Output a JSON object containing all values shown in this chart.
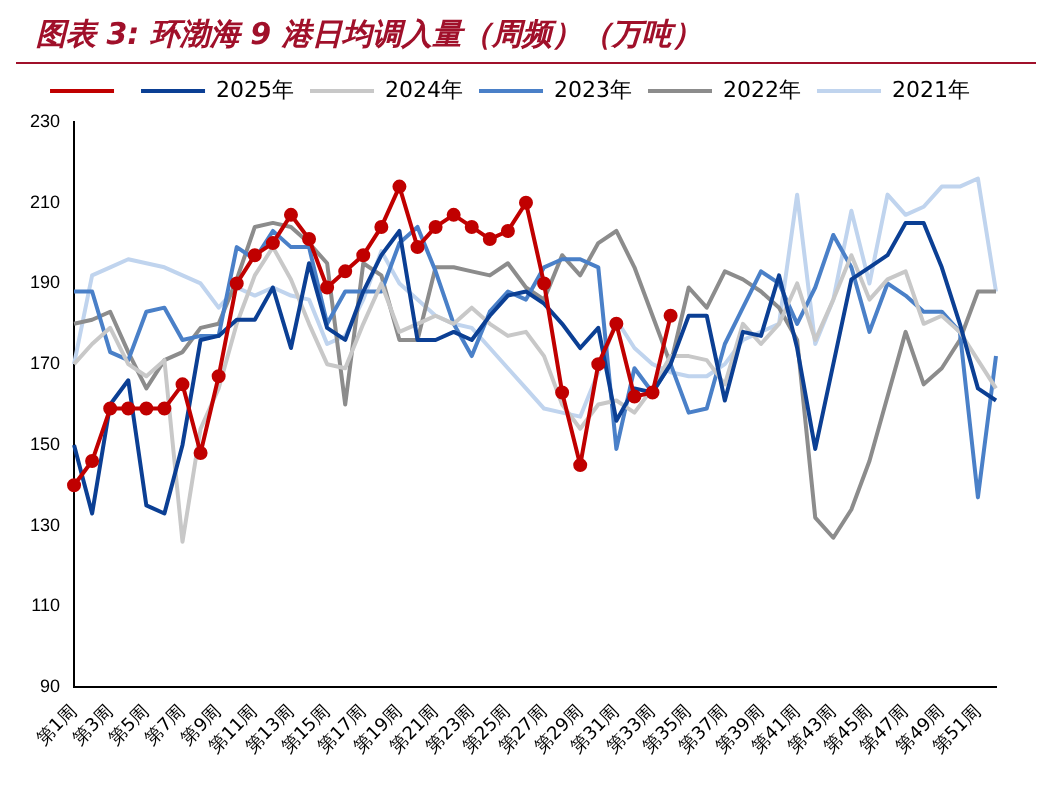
{
  "chart_data": {
    "type": "line",
    "title": "图表 3:  环渤海 9 港日均调入量（周频）（万吨）",
    "categories": [
      "第1周",
      null,
      "第3周",
      null,
      "第5周",
      null,
      "第7周",
      null,
      "第9周",
      null,
      "第11周",
      null,
      "第13周",
      null,
      "第15周",
      null,
      "第17周",
      null,
      "第19周",
      null,
      "第21周",
      null,
      "第23周",
      null,
      "第25周",
      null,
      "第27周",
      null,
      "第29周",
      null,
      "第31周",
      null,
      "第33周",
      null,
      "第35周",
      null,
      "第37周",
      null,
      "第39周",
      null,
      "第41周",
      null,
      "第43周",
      null,
      "第45周",
      null,
      "第47周",
      null,
      "第49周",
      null,
      "第51周",
      null
    ],
    "ylim": [
      90,
      230
    ],
    "yticks": [
      90,
      110,
      130,
      150,
      170,
      190,
      210,
      230
    ],
    "grid": false,
    "legend": "top",
    "marker": "none",
    "series": [
      {
        "color": "#c00000",
        "marker": "circle",
        "values": [
          140,
          146,
          159,
          159,
          159,
          159,
          165,
          148,
          167,
          190,
          197,
          200,
          207,
          201,
          189,
          193,
          197,
          204,
          214,
          199,
          204,
          207,
          204,
          201,
          203,
          210,
          190,
          163,
          145,
          170,
          180,
          162,
          163,
          182,
          null,
          null,
          null,
          null,
          null,
          null,
          null,
          null,
          null,
          null,
          null,
          null,
          null,
          null,
          null,
          null,
          null,
          null
        ]
      },
      {
        "name": "2025年",
        "color": "#0b3f94",
        "values": [
          150,
          133,
          160,
          166,
          135,
          133,
          150,
          176,
          177,
          181,
          181,
          189,
          174,
          195,
          179,
          176,
          188,
          197,
          203,
          176,
          176,
          178,
          176,
          182,
          187,
          188,
          185,
          180,
          174,
          179,
          156,
          164,
          163,
          170,
          182,
          182,
          161,
          178,
          177,
          192,
          174,
          149,
          170,
          191,
          194,
          197,
          205,
          205,
          194,
          180,
          164,
          161
        ]
      },
      {
        "name": "2024年",
        "color": "#c8c8c8",
        "values": [
          170,
          175,
          179,
          170,
          167,
          171,
          126,
          154,
          164,
          180,
          192,
          199,
          191,
          180,
          170,
          169,
          180,
          190,
          178,
          180,
          182,
          180,
          184,
          180,
          177,
          178,
          172,
          160,
          154,
          160,
          161,
          158,
          164,
          172,
          172,
          171,
          165,
          180,
          175,
          180,
          190,
          176,
          186,
          197,
          186,
          191,
          193,
          180,
          182,
          178,
          171,
          164
        ]
      },
      {
        "name": "2023年",
        "color": "#4a80c8",
        "values": [
          188,
          188,
          173,
          171,
          183,
          184,
          176,
          177,
          177,
          199,
          196,
          203,
          199,
          199,
          180,
          188,
          188,
          188,
          200,
          204,
          193,
          180,
          172,
          183,
          188,
          186,
          194,
          196,
          196,
          194,
          149,
          169,
          163,
          170,
          158,
          159,
          175,
          184,
          193,
          190,
          180,
          189,
          202,
          194,
          178,
          190,
          187,
          183,
          183,
          178,
          137,
          172
        ]
      },
      {
        "name": "2022年",
        "color": "#8c8c8c",
        "values": [
          180,
          181,
          183,
          173,
          164,
          171,
          173,
          179,
          180,
          191,
          204,
          205,
          204,
          200,
          195,
          160,
          195,
          192,
          176,
          176,
          194,
          194,
          193,
          192,
          195,
          189,
          186,
          197,
          192,
          200,
          203,
          194,
          182,
          170,
          189,
          184,
          193,
          191,
          188,
          184,
          176,
          132,
          127,
          134,
          146,
          162,
          178,
          165,
          169,
          176,
          188,
          188
        ]
      },
      {
        "name": "2021年",
        "color": "#c0d4ee",
        "values": [
          170,
          192,
          194,
          196,
          195,
          194,
          192,
          190,
          184,
          189,
          187,
          189,
          187,
          186,
          175,
          177,
          186,
          198,
          190,
          186,
          182,
          180,
          179,
          174,
          169,
          164,
          159,
          158,
          157,
          168,
          181,
          174,
          170,
          168,
          167,
          167,
          170,
          176,
          178,
          180,
          212,
          175,
          186,
          208,
          190,
          212,
          207,
          209,
          214,
          214,
          216,
          188
        ]
      }
    ]
  }
}
